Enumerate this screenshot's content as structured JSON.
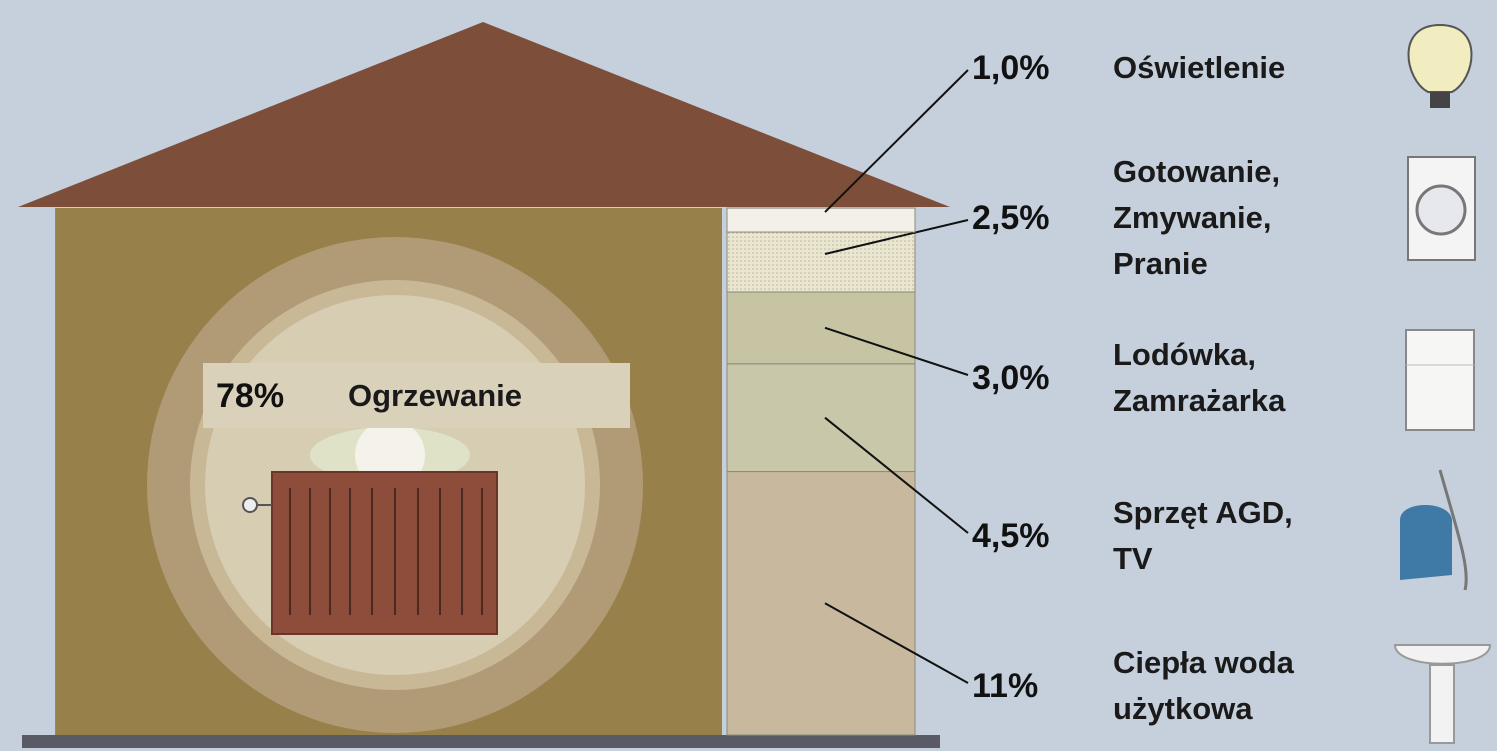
{
  "chart_data": {
    "type": "house",
    "categories": [
      [
        "Ogrzewanie"
      ],
      [
        "Oświetlenie"
      ],
      [
        "Gotowanie,",
        "Zmywanie,",
        "Pranie"
      ],
      [
        "Lodówka,",
        "Zamrażarka"
      ],
      [
        "Sprzęt AGD,",
        "TV"
      ],
      [
        "Ciepła woda",
        "użytkowa"
      ]
    ],
    "values": [
      78,
      1.0,
      2.5,
      3.0,
      4.5,
      11
    ],
    "value_labels": [
      "78%",
      "1,0%",
      "2,5%",
      "3,0%",
      "4,5%",
      "11%"
    ],
    "colors": [
      "#97804a",
      "#f2f0e8",
      "#e8e3cc",
      "#c7c4a4",
      "#c9c7a9",
      "#c8b99e"
    ]
  }
}
